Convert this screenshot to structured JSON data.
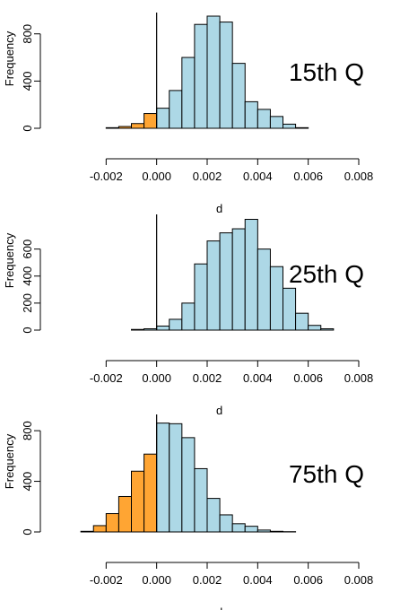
{
  "chart_data": [
    {
      "type": "bar",
      "panel_label": "15th Q",
      "xlabel": "d",
      "ylabel": "Frequency",
      "xlim": [
        -0.004,
        0.008
      ],
      "ylim": [
        0,
        950
      ],
      "x_ticks": [
        "-0.002",
        "0.000",
        "0.002",
        "0.004",
        "0.006",
        "0.008"
      ],
      "x_tick_values": [
        -0.002,
        0.0,
        0.002,
        0.004,
        0.006,
        0.008
      ],
      "y_ticks": [
        "0",
        "400",
        "800"
      ],
      "y_tick_values": [
        0,
        400,
        800
      ],
      "vline": 0.0,
      "bin_width": 0.0005,
      "bins": [
        {
          "x0": -0.002,
          "value": 5,
          "color": "#FFA533"
        },
        {
          "x0": -0.0015,
          "value": 15,
          "color": "#FFA533"
        },
        {
          "x0": -0.001,
          "value": 40,
          "color": "#FFA533"
        },
        {
          "x0": -0.0005,
          "value": 125,
          "color": "#FFA533"
        },
        {
          "x0": 0.0,
          "value": 170,
          "color": "#ADD8E6"
        },
        {
          "x0": 0.0005,
          "value": 320,
          "color": "#ADD8E6"
        },
        {
          "x0": 0.001,
          "value": 600,
          "color": "#ADD8E6"
        },
        {
          "x0": 0.0015,
          "value": 880,
          "color": "#ADD8E6"
        },
        {
          "x0": 0.002,
          "value": 950,
          "color": "#ADD8E6"
        },
        {
          "x0": 0.0025,
          "value": 900,
          "color": "#ADD8E6"
        },
        {
          "x0": 0.003,
          "value": 550,
          "color": "#ADD8E6"
        },
        {
          "x0": 0.0035,
          "value": 225,
          "color": "#ADD8E6"
        },
        {
          "x0": 0.004,
          "value": 160,
          "color": "#ADD8E6"
        },
        {
          "x0": 0.0045,
          "value": 100,
          "color": "#ADD8E6"
        },
        {
          "x0": 0.005,
          "value": 35,
          "color": "#ADD8E6"
        },
        {
          "x0": 0.0055,
          "value": 5,
          "color": "#ADD8E6"
        }
      ]
    },
    {
      "type": "bar",
      "panel_label": "25th Q",
      "xlabel": "d",
      "ylabel": "Frequency",
      "xlim": [
        -0.004,
        0.008
      ],
      "ylim": [
        0,
        830
      ],
      "x_ticks": [
        "-0.002",
        "0.000",
        "0.002",
        "0.004",
        "0.006",
        "0.008"
      ],
      "x_tick_values": [
        -0.002,
        0.0,
        0.002,
        0.004,
        0.006,
        0.008
      ],
      "y_ticks": [
        "0",
        "200",
        "400",
        "600"
      ],
      "y_tick_values": [
        0,
        200,
        400,
        600
      ],
      "vline": 0.0,
      "bin_width": 0.0005,
      "bins": [
        {
          "x0": -0.001,
          "value": 5,
          "color": "#ADD8E6"
        },
        {
          "x0": -0.0005,
          "value": 10,
          "color": "#ADD8E6"
        },
        {
          "x0": 0.0,
          "value": 30,
          "color": "#ADD8E6"
        },
        {
          "x0": 0.0005,
          "value": 80,
          "color": "#ADD8E6"
        },
        {
          "x0": 0.001,
          "value": 200,
          "color": "#ADD8E6"
        },
        {
          "x0": 0.0015,
          "value": 490,
          "color": "#ADD8E6"
        },
        {
          "x0": 0.002,
          "value": 660,
          "color": "#ADD8E6"
        },
        {
          "x0": 0.0025,
          "value": 720,
          "color": "#ADD8E6"
        },
        {
          "x0": 0.003,
          "value": 750,
          "color": "#ADD8E6"
        },
        {
          "x0": 0.0035,
          "value": 820,
          "color": "#ADD8E6"
        },
        {
          "x0": 0.004,
          "value": 600,
          "color": "#ADD8E6"
        },
        {
          "x0": 0.0045,
          "value": 470,
          "color": "#ADD8E6"
        },
        {
          "x0": 0.005,
          "value": 310,
          "color": "#ADD8E6"
        },
        {
          "x0": 0.0055,
          "value": 125,
          "color": "#ADD8E6"
        },
        {
          "x0": 0.006,
          "value": 35,
          "color": "#ADD8E6"
        },
        {
          "x0": 0.0065,
          "value": 10,
          "color": "#ADD8E6"
        }
      ]
    },
    {
      "type": "bar",
      "panel_label": "75th Q",
      "xlabel": "d",
      "ylabel": "Frequency",
      "xlim": [
        -0.004,
        0.008
      ],
      "ylim": [
        0,
        900
      ],
      "x_ticks": [
        "-0.002",
        "0.000",
        "0.002",
        "0.004",
        "0.006",
        "0.008"
      ],
      "x_tick_values": [
        -0.002,
        0.0,
        0.002,
        0.004,
        0.006,
        0.008
      ],
      "y_ticks": [
        "0",
        "400",
        "800"
      ],
      "y_tick_values": [
        0,
        400,
        800
      ],
      "vline": 0.0,
      "bin_width": 0.0005,
      "bins": [
        {
          "x0": -0.003,
          "value": 5,
          "color": "#FFA533"
        },
        {
          "x0": -0.0025,
          "value": 50,
          "color": "#FFA533"
        },
        {
          "x0": -0.002,
          "value": 145,
          "color": "#FFA533"
        },
        {
          "x0": -0.0015,
          "value": 280,
          "color": "#FFA533"
        },
        {
          "x0": -0.001,
          "value": 480,
          "color": "#FFA533"
        },
        {
          "x0": -0.0005,
          "value": 615,
          "color": "#FFA533"
        },
        {
          "x0": 0.0,
          "value": 860,
          "color": "#ADD8E6"
        },
        {
          "x0": 0.0005,
          "value": 855,
          "color": "#ADD8E6"
        },
        {
          "x0": 0.001,
          "value": 745,
          "color": "#ADD8E6"
        },
        {
          "x0": 0.0015,
          "value": 500,
          "color": "#ADD8E6"
        },
        {
          "x0": 0.002,
          "value": 265,
          "color": "#ADD8E6"
        },
        {
          "x0": 0.0025,
          "value": 135,
          "color": "#ADD8E6"
        },
        {
          "x0": 0.003,
          "value": 65,
          "color": "#ADD8E6"
        },
        {
          "x0": 0.0035,
          "value": 45,
          "color": "#ADD8E6"
        },
        {
          "x0": 0.004,
          "value": 15,
          "color": "#ADD8E6"
        },
        {
          "x0": 0.0045,
          "value": 5,
          "color": "#ADD8E6"
        },
        {
          "x0": 0.005,
          "value": 2,
          "color": "#ADD8E6"
        }
      ]
    }
  ]
}
